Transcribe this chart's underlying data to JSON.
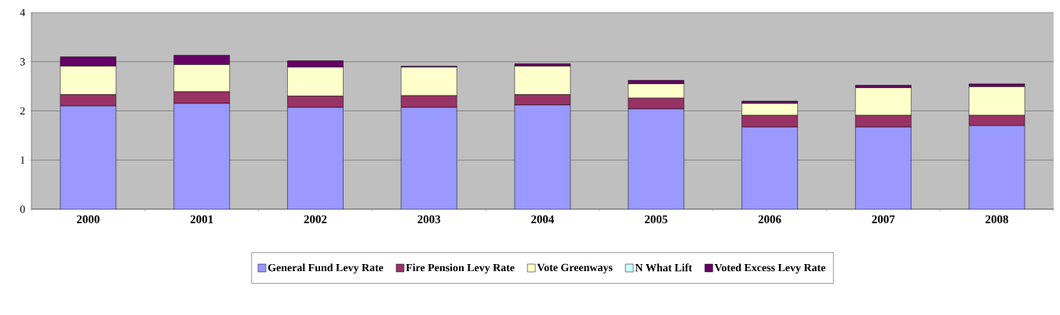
{
  "chart_data": {
    "type": "bar",
    "stacked": true,
    "categories": [
      "2000",
      "2001",
      "2002",
      "2003",
      "2004",
      "2005",
      "2006",
      "2007",
      "2008"
    ],
    "series": [
      {
        "name": "General Fund Levy Rate",
        "color": "#9999ff",
        "values": [
          2.1,
          2.15,
          2.07,
          2.07,
          2.12,
          2.04,
          1.67,
          1.67,
          1.7
        ]
      },
      {
        "name": "Fire Pension Levy Rate",
        "color": "#993366",
        "values": [
          0.23,
          0.24,
          0.23,
          0.24,
          0.21,
          0.22,
          0.24,
          0.24,
          0.21
        ]
      },
      {
        "name": "Vote Greenways",
        "color": "#ffffcc",
        "values": [
          0.58,
          0.55,
          0.59,
          0.58,
          0.58,
          0.29,
          0.24,
          0.56,
          0.58
        ]
      },
      {
        "name": "N What Lift",
        "color": "#ccffff",
        "values": [
          0,
          0,
          0,
          0,
          0,
          0,
          0,
          0,
          0
        ]
      },
      {
        "name": "Voted Excess Levy Rate",
        "color": "#660066",
        "values": [
          0.19,
          0.19,
          0.13,
          0.02,
          0.05,
          0.07,
          0.05,
          0.05,
          0.06
        ]
      }
    ],
    "ylim": [
      0,
      4
    ],
    "yticks": [
      0,
      1,
      2,
      3,
      4
    ],
    "grid": "y",
    "legend": "bottom"
  }
}
